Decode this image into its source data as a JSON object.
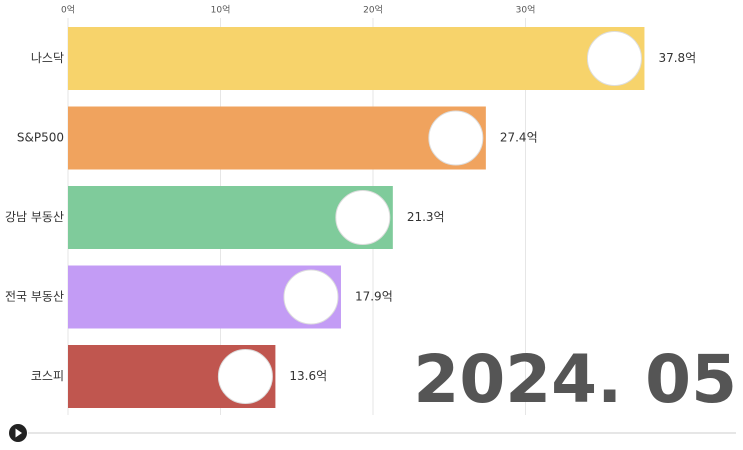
{
  "chart_data": {
    "type": "bar",
    "orientation": "horizontal",
    "categories": [
      "나스닥",
      "S&P500",
      "강남 부동산",
      "전국 부동산",
      "코스피"
    ],
    "values": [
      37.8,
      27.4,
      21.3,
      17.9,
      13.6
    ],
    "value_labels": [
      "37.8억",
      "27.4억",
      "21.3억",
      "17.9억",
      "13.6억"
    ],
    "colors": [
      "#f7d36b",
      "#f0a35e",
      "#7fcb9b",
      "#c39cf5",
      "#c0564f"
    ],
    "xlim": [
      0,
      44
    ],
    "xticks": [
      {
        "value": 0,
        "label": "0억"
      },
      {
        "value": 10,
        "label": "10억"
      },
      {
        "value": 20,
        "label": "20억"
      },
      {
        "value": 30,
        "label": "30억"
      }
    ],
    "grid": true,
    "date_label": "2024. 05"
  }
}
